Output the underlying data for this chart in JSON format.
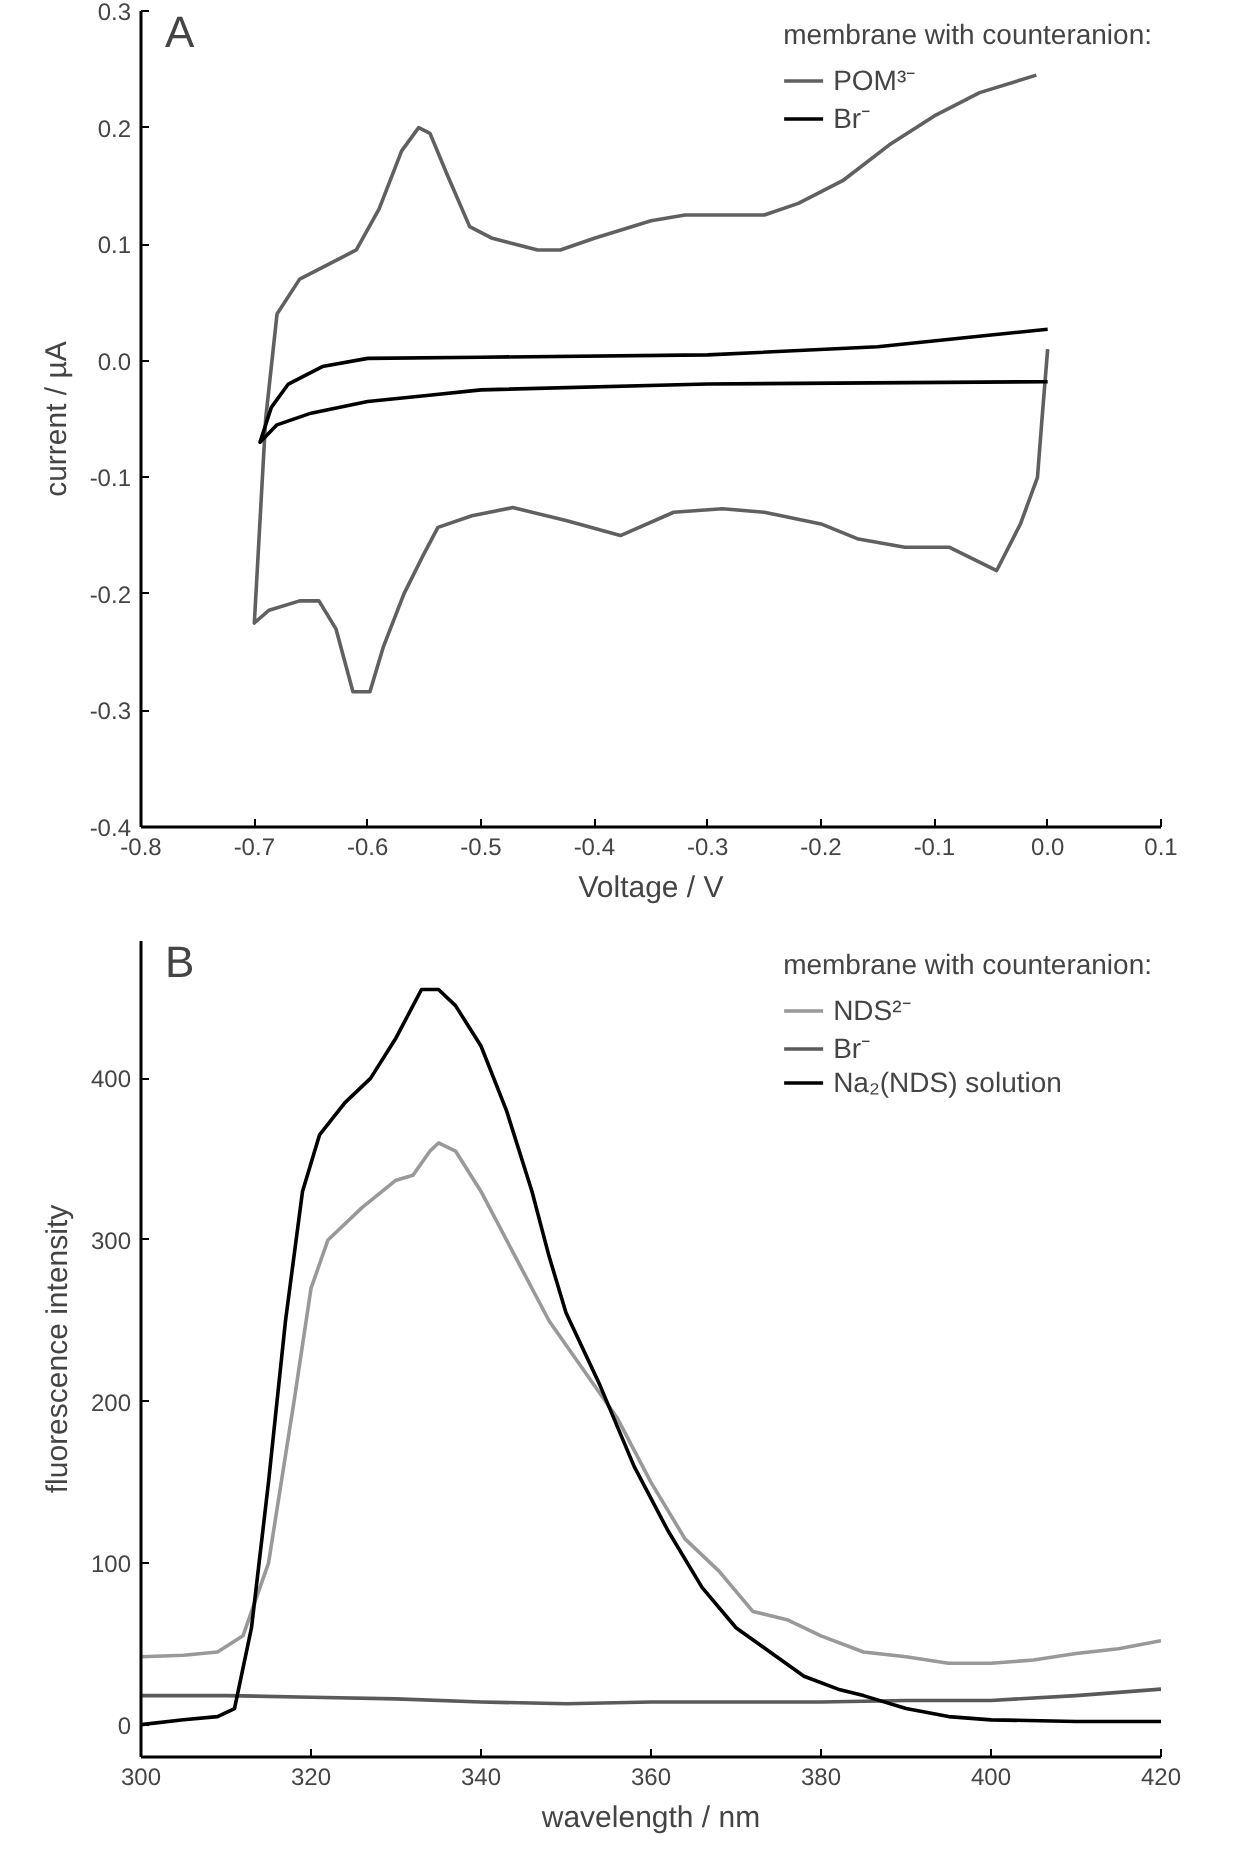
{
  "chart_data": [
    {
      "type": "line",
      "annotations": [
        "A"
      ],
      "xlabel": "Voltage / V",
      "ylabel": "current / µA",
      "legend_title": "membrane with counteranion:",
      "legend": "top right",
      "grid": false,
      "marker": "none",
      "line_style": "solid",
      "xlim": [
        -0.8,
        0.1
      ],
      "xticks": [
        {
          "value": -0.8,
          "label": "-0.8"
        },
        {
          "value": -0.7,
          "label": "-0.7"
        },
        {
          "value": -0.6,
          "label": "-0.6"
        },
        {
          "value": -0.5,
          "label": "-0.5"
        },
        {
          "value": -0.4,
          "label": "-0.4"
        },
        {
          "value": -0.3,
          "label": "-0.3"
        },
        {
          "value": -0.2,
          "label": "-0.2"
        },
        {
          "value": -0.1,
          "label": "-0.1"
        },
        {
          "value": 0.0,
          "label": "0.0"
        },
        {
          "value": 0.1,
          "label": "0.1"
        }
      ],
      "ylim": [
        -0.4,
        0.3
      ],
      "yticks": [
        {
          "value": -0.4,
          "label": "-0.4"
        },
        {
          "value": -0.3,
          "label": "-0.3"
        },
        {
          "value": -0.2,
          "label": "-0.2"
        },
        {
          "value": -0.1,
          "label": "-0.1"
        },
        {
          "value": 0.0,
          "label": "0.0"
        },
        {
          "value": 0.1,
          "label": "0.1"
        },
        {
          "value": 0.2,
          "label": "0.2"
        },
        {
          "value": 0.3,
          "label": "0.3"
        }
      ],
      "series": [
        {
          "name": "POM³⁻",
          "color": "#606060",
          "x": [
            0.0,
            -0.005,
            -0.009,
            -0.024,
            -0.045,
            -0.066,
            -0.087,
            -0.126,
            -0.167,
            -0.2,
            -0.25,
            -0.287,
            -0.33,
            -0.377,
            -0.425,
            -0.472,
            -0.508,
            -0.538,
            -0.55,
            -0.568,
            -0.586,
            -0.598,
            -0.613,
            -0.628,
            -0.643,
            -0.66,
            -0.687,
            -0.7,
            -0.69,
            -0.68,
            -0.66,
            -0.63,
            -0.61,
            -0.59,
            -0.57,
            -0.555,
            -0.545,
            -0.53,
            -0.51,
            -0.49,
            -0.45,
            -0.43,
            -0.4,
            -0.35,
            -0.32,
            -0.28,
            -0.25,
            -0.22,
            -0.18,
            -0.14,
            -0.1,
            -0.06,
            -0.01
          ],
          "values": [
            0.01,
            -0.05,
            -0.1,
            -0.14,
            -0.18,
            -0.17,
            -0.16,
            -0.16,
            -0.153,
            -0.14,
            -0.13,
            -0.127,
            -0.13,
            -0.15,
            -0.137,
            -0.126,
            -0.133,
            -0.143,
            -0.165,
            -0.2,
            -0.245,
            -0.284,
            -0.284,
            -0.23,
            -0.206,
            -0.206,
            -0.214,
            -0.225,
            -0.05,
            0.04,
            0.07,
            0.085,
            0.095,
            0.13,
            0.18,
            0.2,
            0.195,
            0.16,
            0.115,
            0.105,
            0.095,
            0.095,
            0.105,
            0.12,
            0.125,
            0.125,
            0.125,
            0.135,
            0.155,
            0.185,
            0.21,
            0.23,
            0.245
          ]
        },
        {
          "name": "Br⁻",
          "color": "#000000",
          "x": [
            0.0,
            -0.3,
            -0.5,
            -0.55,
            -0.6,
            -0.65,
            -0.68,
            -0.695,
            -0.685,
            -0.67,
            -0.64,
            -0.6,
            -0.5,
            -0.3,
            -0.15,
            -0.05,
            0.0
          ],
          "values": [
            -0.018,
            -0.02,
            -0.025,
            -0.03,
            -0.035,
            -0.045,
            -0.055,
            -0.07,
            -0.04,
            -0.02,
            -0.005,
            0.002,
            0.003,
            0.005,
            0.012,
            0.022,
            0.027
          ]
        }
      ]
    },
    {
      "type": "line",
      "annotations": [
        "B"
      ],
      "xlabel": "wavelength / nm",
      "ylabel": "fluorescence intensity",
      "legend_title": "membrane with counteranion:",
      "legend": "top right",
      "grid": false,
      "marker": "none",
      "line_style": "solid",
      "xlim": [
        300,
        420
      ],
      "xticks": [
        300,
        320,
        340,
        360,
        380,
        400,
        420
      ],
      "ylim": [
        -20,
        485
      ],
      "yticks": [
        0,
        100,
        200,
        300,
        400
      ],
      "series": [
        {
          "name": "NDS²⁻",
          "color": "#999999",
          "x": [
            300,
            305,
            309,
            312,
            315,
            318,
            320,
            322,
            326,
            330,
            332,
            334,
            335,
            337,
            340,
            344,
            348,
            352,
            356,
            360,
            364,
            368,
            372,
            376,
            380,
            385,
            390,
            395,
            400,
            405,
            410,
            415,
            420
          ],
          "values": [
            42,
            43,
            45,
            55,
            100,
            200,
            270,
            300,
            320,
            337,
            340,
            355,
            360,
            355,
            330,
            290,
            250,
            220,
            190,
            150,
            115,
            95,
            70,
            65,
            55,
            45,
            42,
            38,
            38,
            40,
            44,
            47,
            52
          ]
        },
        {
          "name": "Br⁻",
          "color": "#5a5a5a",
          "x": [
            300,
            310,
            320,
            330,
            340,
            350,
            360,
            370,
            380,
            390,
            400,
            410,
            420
          ],
          "values": [
            18,
            18,
            17,
            16,
            14,
            13,
            14,
            14,
            14,
            15,
            15,
            18,
            22
          ]
        },
        {
          "name": "Na₂(NDS) solution",
          "color": "#000000",
          "x": [
            300,
            305,
            309,
            311,
            313,
            315,
            317,
            319,
            321,
            324,
            327,
            330,
            333,
            335,
            337,
            340,
            343,
            346,
            348,
            350,
            354,
            358,
            362,
            366,
            370,
            374,
            378,
            382,
            385,
            390,
            395,
            400,
            410,
            420
          ],
          "values": [
            0,
            3,
            5,
            10,
            60,
            150,
            250,
            330,
            365,
            385,
            400,
            425,
            455,
            455,
            445,
            420,
            380,
            330,
            290,
            255,
            210,
            160,
            120,
            85,
            60,
            45,
            30,
            22,
            18,
            10,
            5,
            3,
            2,
            2
          ]
        }
      ]
    }
  ]
}
